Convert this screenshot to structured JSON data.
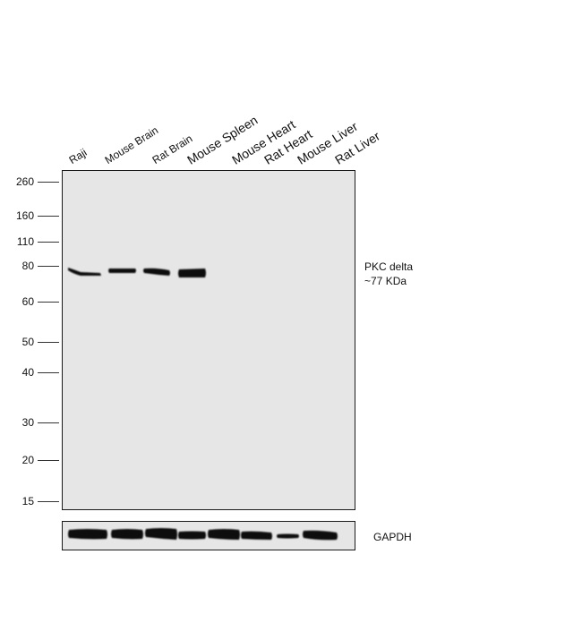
{
  "lanes": [
    "Raji",
    "Mouse Brain",
    "Rat Brain",
    "Mouse Spleen",
    "Mouse Heart",
    "Rat Heart",
    "Mouse Liver",
    "Rat Liver"
  ],
  "markers": [
    "260",
    "160",
    "110",
    "80",
    "60",
    "50",
    "40",
    "30",
    "20",
    "15"
  ],
  "target": {
    "line1": "PKC  delta",
    "line2": "~77 KDa"
  },
  "loading_control": "GAPDH",
  "colors": {
    "membrane": "#e6e6e6",
    "band": "#101010",
    "border": "#1a1a1a"
  }
}
